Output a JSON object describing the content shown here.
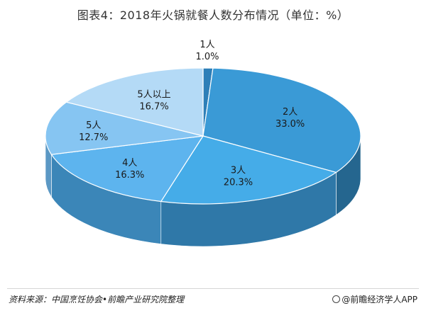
{
  "title": "图表4：2018年火锅就餐人数分布情况（单位：%）",
  "source": "资料来源：中国烹饪协会•前瞻产业研究院整理",
  "brand": "@前瞻经济学人APP",
  "colors": {
    "background": "#ffffff",
    "title": "#333333",
    "text": "#1a1a1a"
  },
  "chart_data": {
    "type": "pie",
    "style": "3d",
    "title": "图表4：2018年火锅就餐人数分布情况（单位：%）",
    "unit": "%",
    "categories": [
      "1人",
      "2人",
      "3人",
      "4人",
      "5人",
      "5人以上"
    ],
    "values": [
      1.0,
      33.0,
      20.3,
      16.3,
      12.7,
      16.7
    ],
    "value_labels": [
      "1.0%",
      "33.0%",
      "20.3%",
      "16.3%",
      "12.7%",
      "16.7%"
    ],
    "colors": [
      "#2D7FB8",
      "#3A9AD6",
      "#45ACE8",
      "#5DB4EE",
      "#86C5F2",
      "#B4DAF6"
    ],
    "side_colors": [
      "#1F5F8E",
      "#25668F",
      "#2F78A8",
      "#3B86B8",
      "#5B98C4",
      "#7CABCF"
    ]
  }
}
